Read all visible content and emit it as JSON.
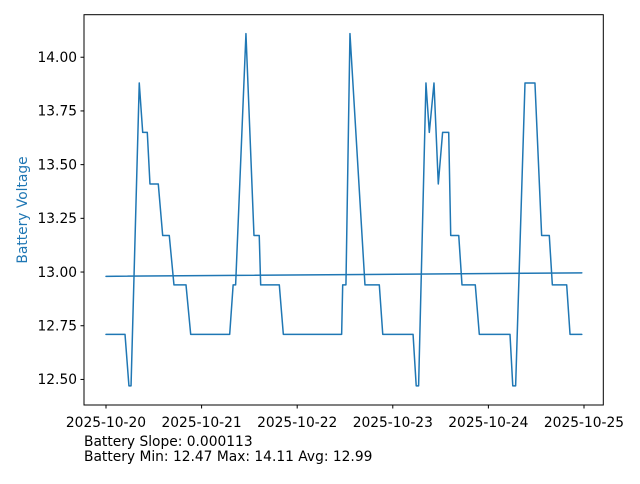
{
  "figure": {
    "background": "#ffffff",
    "footer": {
      "line1": "Battery Slope: 0.000113",
      "line2": "Battery Min: 12.47 Max: 14.11 Avg: 12.99"
    }
  },
  "chart_data": {
    "type": "line",
    "title": "",
    "xlabel": "",
    "ylabel": "Battery Voltage",
    "ylabel_color": "#1f77b4",
    "grid": false,
    "legend_position": "none",
    "x_unit": "days since 2025-10-20 00:00",
    "xlim": [
      -0.23,
      5.202
    ],
    "ylim": [
      12.381,
      14.198
    ],
    "x_ticks": [
      {
        "t": 0,
        "label": "2025-10-20"
      },
      {
        "t": 1,
        "label": "2025-10-21"
      },
      {
        "t": 2,
        "label": "2025-10-22"
      },
      {
        "t": 3,
        "label": "2025-10-23"
      },
      {
        "t": 4,
        "label": "2025-10-24"
      },
      {
        "t": 5,
        "label": "2025-10-25"
      }
    ],
    "y_ticks": [
      {
        "v": 12.5,
        "label": "12.50"
      },
      {
        "v": 12.75,
        "label": "12.75"
      },
      {
        "v": 13.0,
        "label": "13.00"
      },
      {
        "v": 13.25,
        "label": "13.25"
      },
      {
        "v": 13.5,
        "label": "13.50"
      },
      {
        "v": 13.75,
        "label": "13.75"
      },
      {
        "v": 14.0,
        "label": "14.00"
      }
    ],
    "stats": {
      "slope": "0.000113",
      "min": "12.47",
      "max": "14.11",
      "avg": "12.99"
    },
    "series": [
      {
        "name": "battery-voltage",
        "color": "#1f77b4",
        "width": 1.5,
        "points": [
          [
            0.0,
            12.71
          ],
          [
            0.199,
            12.71
          ],
          [
            0.24,
            12.47
          ],
          [
            0.262,
            12.47
          ],
          [
            0.348,
            13.88
          ],
          [
            0.384,
            13.65
          ],
          [
            0.432,
            13.65
          ],
          [
            0.46,
            13.41
          ],
          [
            0.547,
            13.41
          ],
          [
            0.593,
            13.17
          ],
          [
            0.662,
            13.17
          ],
          [
            0.711,
            12.94
          ],
          [
            0.837,
            12.94
          ],
          [
            0.886,
            12.71
          ],
          [
            1.294,
            12.71
          ],
          [
            1.33,
            12.94
          ],
          [
            1.356,
            12.94
          ],
          [
            1.464,
            14.11
          ],
          [
            1.548,
            13.17
          ],
          [
            1.603,
            13.17
          ],
          [
            1.618,
            12.94
          ],
          [
            1.813,
            12.94
          ],
          [
            1.855,
            12.71
          ],
          [
            2.465,
            12.71
          ],
          [
            2.476,
            12.94
          ],
          [
            2.51,
            12.94
          ],
          [
            2.552,
            14.11
          ],
          [
            2.709,
            12.94
          ],
          [
            2.859,
            12.94
          ],
          [
            2.895,
            12.71
          ],
          [
            3.212,
            12.71
          ],
          [
            3.245,
            12.47
          ],
          [
            3.27,
            12.47
          ],
          [
            3.347,
            13.88
          ],
          [
            3.382,
            13.65
          ],
          [
            3.431,
            13.88
          ],
          [
            3.476,
            13.41
          ],
          [
            3.521,
            13.65
          ],
          [
            3.585,
            13.65
          ],
          [
            3.606,
            13.17
          ],
          [
            3.69,
            13.17
          ],
          [
            3.724,
            12.94
          ],
          [
            3.863,
            12.94
          ],
          [
            3.905,
            12.71
          ],
          [
            4.226,
            12.71
          ],
          [
            4.255,
            12.47
          ],
          [
            4.285,
            12.47
          ],
          [
            4.383,
            13.88
          ],
          [
            4.487,
            13.88
          ],
          [
            4.557,
            13.17
          ],
          [
            4.637,
            13.17
          ],
          [
            4.669,
            12.94
          ],
          [
            4.819,
            12.94
          ],
          [
            4.854,
            12.71
          ],
          [
            4.977,
            12.71
          ]
        ]
      },
      {
        "name": "trend",
        "color": "#1f77b4",
        "width": 1.5,
        "points": [
          [
            0.0,
            12.98
          ],
          [
            4.977,
            12.996
          ]
        ]
      }
    ]
  }
}
